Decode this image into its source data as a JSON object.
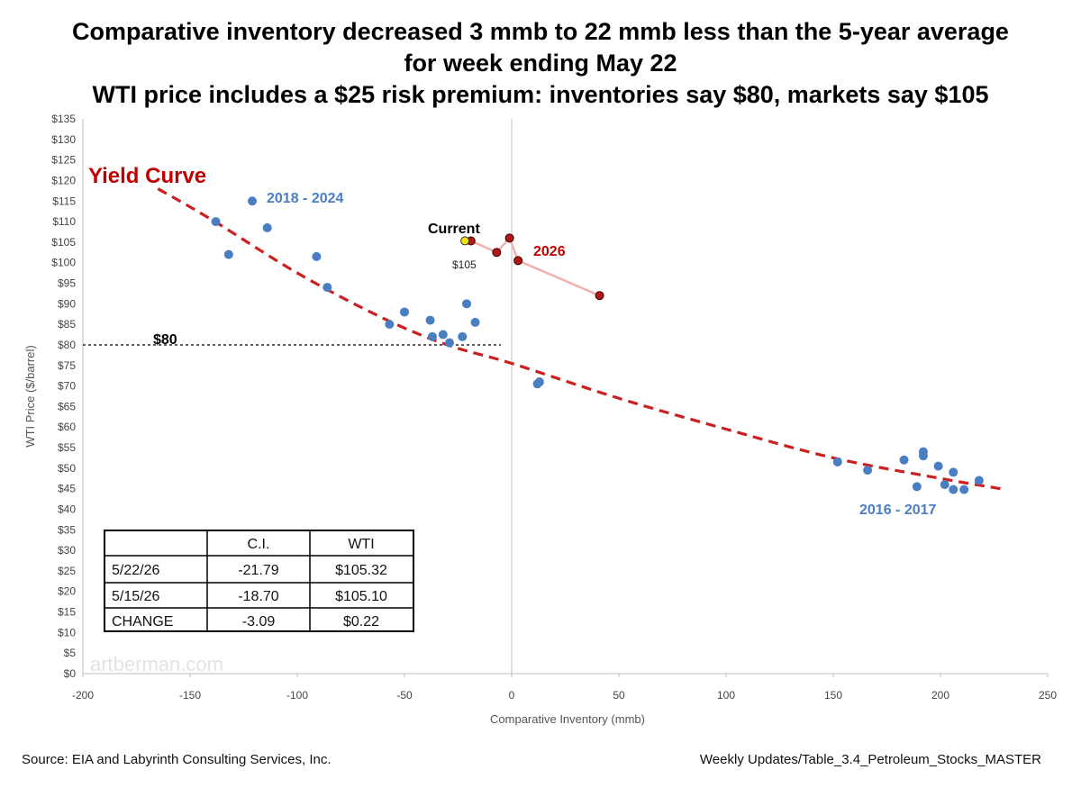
{
  "chart_data": {
    "type": "scatter",
    "title_lines": [
      "Comparative inventory decreased 3 mmb to 22 mmb less than the 5-year average",
      "for week ending May 22",
      "WTI price includes a $25 risk premium: inventories say $80, markets say $105"
    ],
    "xlabel": "Comparative Inventory (mmb)",
    "ylabel": "WTI Price ($/barrel)",
    "xlim": [
      -200,
      250
    ],
    "ylim": [
      0,
      135
    ],
    "x_ticks": [
      "-200",
      "-150",
      "-100",
      "-50",
      "0",
      "50",
      "100",
      "150",
      "200",
      "250"
    ],
    "y_ticks": [
      "$0",
      "$5",
      "$10",
      "$15",
      "$20",
      "$25",
      "$30",
      "$35",
      "$40",
      "$45",
      "$50",
      "$55",
      "$60",
      "$65",
      "$70",
      "$75",
      "$80",
      "$85",
      "$90",
      "$95",
      "$100",
      "$105",
      "$110",
      "$115",
      "$120",
      "$125",
      "$130",
      "$135"
    ],
    "grid": false,
    "colors": {
      "historical": "#4a7ec3",
      "year2026": "#8b1a1a",
      "current": "#f5e400",
      "curve": "#cc1f1f",
      "connector": "#f2b0b0"
    },
    "series": [
      {
        "name": "2018 - 2024",
        "points": [
          [
            -138,
            110
          ],
          [
            -132,
            102
          ],
          [
            -121,
            115
          ],
          [
            -114,
            108.5
          ],
          [
            -91,
            101.5
          ],
          [
            -86,
            94
          ],
          [
            -57,
            85
          ],
          [
            -50,
            88
          ],
          [
            -38,
            86
          ],
          [
            -37,
            82
          ],
          [
            -32,
            82.5
          ],
          [
            -29,
            80.5
          ],
          [
            -23,
            82
          ],
          [
            -21,
            90
          ],
          [
            -17,
            85.5
          ]
        ]
      },
      {
        "name": "2016 - 2017",
        "points": [
          [
            12,
            70.5
          ],
          [
            13,
            71
          ],
          [
            152,
            51.5
          ],
          [
            166,
            49.5
          ],
          [
            183,
            52
          ],
          [
            189,
            45.5
          ],
          [
            192,
            53
          ],
          [
            192,
            54
          ],
          [
            199,
            50.5
          ],
          [
            202,
            46
          ],
          [
            206,
            44.8
          ],
          [
            206,
            49
          ],
          [
            211,
            44.8
          ],
          [
            218,
            47
          ]
        ]
      },
      {
        "name": "2026",
        "points": [
          [
            -19,
            105.3
          ],
          [
            -7,
            102.5
          ],
          [
            -1,
            106
          ],
          [
            3,
            100.5
          ],
          [
            41,
            92
          ]
        ]
      }
    ],
    "current_point": [
      -21.79,
      105.32
    ],
    "yield_curve": {
      "label": "Yield Curve",
      "points": [
        [
          -165,
          118
        ],
        [
          -140,
          110.5
        ],
        [
          -100,
          97.5
        ],
        [
          -60,
          86.5
        ],
        [
          -30,
          80
        ],
        [
          0,
          75.5
        ],
        [
          50,
          67
        ],
        [
          100,
          59.5
        ],
        [
          150,
          52.5
        ],
        [
          200,
          47.5
        ],
        [
          228,
          45
        ]
      ]
    },
    "reference_line": {
      "label": "$80",
      "value": 80,
      "x_end": -5
    },
    "annotations": {
      "series_2018_2024": "2018 - 2024",
      "series_2016_2017": "2016 - 2017",
      "series_2026": "2026",
      "current": "Current",
      "current_price": "$105"
    },
    "table": {
      "headers": [
        "",
        "C.I.",
        "WTI"
      ],
      "rows": [
        [
          "5/22/26",
          "-21.79",
          "$105.32"
        ],
        [
          "5/15/26",
          "-18.70",
          "$105.10"
        ],
        [
          "CHANGE",
          "-3.09",
          "$0.22"
        ]
      ]
    },
    "watermark": "artberman.com"
  },
  "footer": {
    "source": "Source: EIA and Labyrinth Consulting Services, Inc.",
    "reference": "Weekly Updates/Table_3.4_Petroleum_Stocks_MASTER"
  }
}
